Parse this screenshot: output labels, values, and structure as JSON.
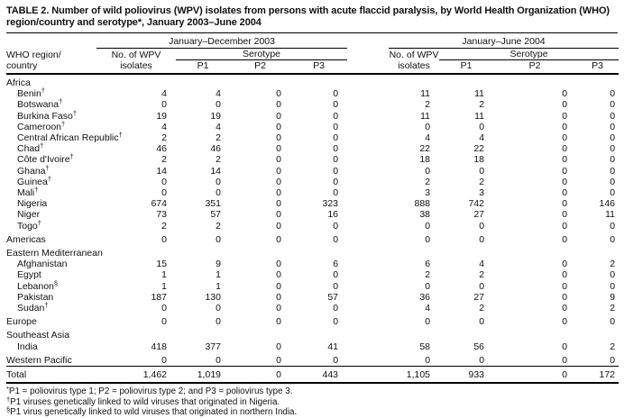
{
  "title": "TABLE 2. Number of wild poliovirus (WPV) isolates from persons with acute flaccid paralysis, by World Health Organization (WHO) region/country and serotype*, January 2003–June 2004",
  "table": {
    "header": {
      "col1_line1": "WHO region/",
      "col1_line2": "country",
      "group_2003": "January–December 2003",
      "group_2004": "January–June 2004",
      "no_wpv_line1": "No. of WPV",
      "no_wpv_line2": "isolates",
      "serotype": "Serotype",
      "p1": "P1",
      "p2": "P2",
      "p3": "P3"
    },
    "rows": [
      {
        "type": "section",
        "label": "Africa",
        "values": []
      },
      {
        "type": "country",
        "label": "Benin",
        "marker": "†",
        "values": [
          "4",
          "4",
          "0",
          "0",
          "11",
          "11",
          "0",
          "0"
        ]
      },
      {
        "type": "country",
        "label": "Botswana",
        "marker": "†",
        "values": [
          "0",
          "0",
          "0",
          "0",
          "2",
          "2",
          "0",
          "0"
        ]
      },
      {
        "type": "country",
        "label": "Burkina Faso",
        "marker": "†",
        "values": [
          "19",
          "19",
          "0",
          "0",
          "11",
          "11",
          "0",
          "0"
        ]
      },
      {
        "type": "country",
        "label": "Cameroon",
        "marker": "†",
        "values": [
          "4",
          "4",
          "0",
          "0",
          "0",
          "0",
          "0",
          "0"
        ]
      },
      {
        "type": "country",
        "label": "Central African Republic",
        "marker": "†",
        "values": [
          "2",
          "2",
          "0",
          "0",
          "4",
          "4",
          "0",
          "0"
        ]
      },
      {
        "type": "country",
        "label": "Chad",
        "marker": "†",
        "values": [
          "46",
          "46",
          "0",
          "0",
          "22",
          "22",
          "0",
          "0"
        ]
      },
      {
        "type": "country",
        "label": "Côte d'Ivoire",
        "marker": "†",
        "values": [
          "2",
          "2",
          "0",
          "0",
          "18",
          "18",
          "0",
          "0"
        ]
      },
      {
        "type": "country",
        "label": "Ghana",
        "marker": "†",
        "values": [
          "14",
          "14",
          "0",
          "0",
          "0",
          "0",
          "0",
          "0"
        ]
      },
      {
        "type": "country",
        "label": "Guinea",
        "marker": "†",
        "values": [
          "0",
          "0",
          "0",
          "0",
          "2",
          "2",
          "0",
          "0"
        ]
      },
      {
        "type": "country",
        "label": "Mali",
        "marker": "†",
        "values": [
          "0",
          "0",
          "0",
          "0",
          "3",
          "3",
          "0",
          "0"
        ]
      },
      {
        "type": "country",
        "label": "Nigeria",
        "values": [
          "674",
          "351",
          "0",
          "323",
          "888",
          "742",
          "0",
          "146"
        ]
      },
      {
        "type": "country",
        "label": "Niger",
        "values": [
          "73",
          "57",
          "0",
          "16",
          "38",
          "27",
          "0",
          "11"
        ]
      },
      {
        "type": "country",
        "label": "Togo",
        "marker": "†",
        "values": [
          "2",
          "2",
          "0",
          "0",
          "0",
          "0",
          "0",
          "0"
        ]
      },
      {
        "type": "region",
        "label": "Americas",
        "values": [
          "0",
          "0",
          "0",
          "0",
          "0",
          "0",
          "0",
          "0"
        ]
      },
      {
        "type": "section",
        "label": "Eastern Mediterranean",
        "values": []
      },
      {
        "type": "country",
        "label": "Afghanistan",
        "values": [
          "15",
          "9",
          "0",
          "6",
          "6",
          "4",
          "0",
          "2"
        ]
      },
      {
        "type": "country",
        "label": "Egypt",
        "values": [
          "1",
          "1",
          "0",
          "0",
          "2",
          "2",
          "0",
          "0"
        ]
      },
      {
        "type": "country",
        "label": "Lebanon",
        "marker": "§",
        "values": [
          "1",
          "1",
          "0",
          "0",
          "0",
          "0",
          "0",
          "0"
        ]
      },
      {
        "type": "country",
        "label": "Pakistan",
        "values": [
          "187",
          "130",
          "0",
          "57",
          "36",
          "27",
          "0",
          "9"
        ]
      },
      {
        "type": "country",
        "label": "Sudan",
        "marker": "†",
        "values": [
          "0",
          "0",
          "0",
          "0",
          "4",
          "2",
          "0",
          "2"
        ]
      },
      {
        "type": "region",
        "label": "Europe",
        "values": [
          "0",
          "0",
          "0",
          "0",
          "0",
          "0",
          "0",
          "0"
        ]
      },
      {
        "type": "section",
        "label": "Southeast Asia",
        "values": []
      },
      {
        "type": "country",
        "label": "India",
        "values": [
          "418",
          "377",
          "0",
          "41",
          "58",
          "56",
          "0",
          "2"
        ]
      },
      {
        "type": "region",
        "label": "Western Pacific",
        "values": [
          "0",
          "0",
          "0",
          "0",
          "0",
          "0",
          "0",
          "0"
        ]
      },
      {
        "type": "total",
        "label": "Total",
        "values": [
          "1,462",
          "1,019",
          "0",
          "443",
          "1,105",
          "933",
          "0",
          "172"
        ]
      }
    ]
  },
  "footnotes": [
    {
      "marker": "*",
      "text": "P1 = poliovirus type 1; P2 = poliovirus type 2; and P3 = poliovirus type 3."
    },
    {
      "marker": "†",
      "text": "P1 viruses genetically linked to wild viruses that originated in Nigeria."
    },
    {
      "marker": "§",
      "text": "P1 virus genetically linked to wild viruses that originated in northern India."
    }
  ]
}
